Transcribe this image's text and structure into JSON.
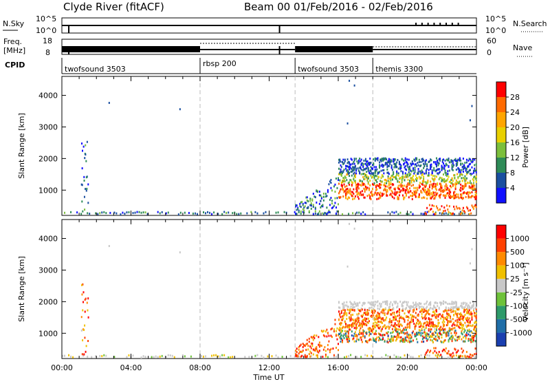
{
  "header": {
    "title_left": "Clyde River (fitACF)",
    "title_right": "Beam 00   01/Feb/2016 - 02/Feb/2016"
  },
  "status_panels": {
    "nsky_label": "N.Sky",
    "nsky_ticks": [
      "10^5",
      "10^0"
    ],
    "nsearch_label": "N.Search",
    "nsearch_ticks": [
      "10^5",
      "10^0"
    ],
    "freq_label_1": "Freq.",
    "freq_label_2": "[MHz]",
    "freq_ticks": [
      "18",
      "8"
    ],
    "nave_label": "Nave",
    "nave_ticks": [
      "60",
      "0"
    ],
    "cpid_label": "CPID",
    "cpid_segments": [
      {
        "label": "twofsound 3503",
        "start": 0,
        "end": 8
      },
      {
        "label": "rbsp 200",
        "start": 8,
        "end": 13.5
      },
      {
        "label": "twofsound 3503",
        "start": 13.5,
        "end": 18
      },
      {
        "label": "themis 3300",
        "start": 18,
        "end": 24
      }
    ]
  },
  "chart_data": [
    {
      "type": "heatmap",
      "name": "power",
      "ylabel": "Slant Range [km]",
      "xlim": [
        0,
        24
      ],
      "ylim": [
        200,
        4600
      ],
      "yticks": [
        "1000",
        "2000",
        "3000",
        "4000"
      ],
      "colorbar_label": "Power [dB]",
      "colorbar_ticks": [
        "4",
        "8",
        "12",
        "16",
        "20",
        "24",
        "28"
      ],
      "colors": [
        "#1010ff",
        "#1a4fa0",
        "#2e8b57",
        "#7cbf3c",
        "#e8d000",
        "#ffa500",
        "#ff6a00",
        "#ff0000"
      ]
    },
    {
      "type": "heatmap",
      "name": "velocity",
      "ylabel": "Slant Range [km]",
      "xlim": [
        0,
        24
      ],
      "ylim": [
        200,
        4600
      ],
      "yticks": [
        "1000",
        "2000",
        "3000",
        "4000"
      ],
      "colorbar_label": "Velocity [m s⁻¹]",
      "colorbar_ticks": [
        "1000",
        "500",
        "100",
        "25",
        "-25",
        "-100",
        "-500",
        "-1000"
      ],
      "colors": [
        "#1a3fb0",
        "#1f6ea8",
        "#2e9a6a",
        "#6ec23a",
        "#c8c8c8",
        "#f0c000",
        "#ff8a00",
        "#ff4000",
        "#ff0000"
      ]
    }
  ],
  "x_axis": {
    "label": "Time UT",
    "ticks": [
      "00:00",
      "04:00",
      "08:00",
      "12:00",
      "16:00",
      "20:00",
      "00:00"
    ]
  }
}
